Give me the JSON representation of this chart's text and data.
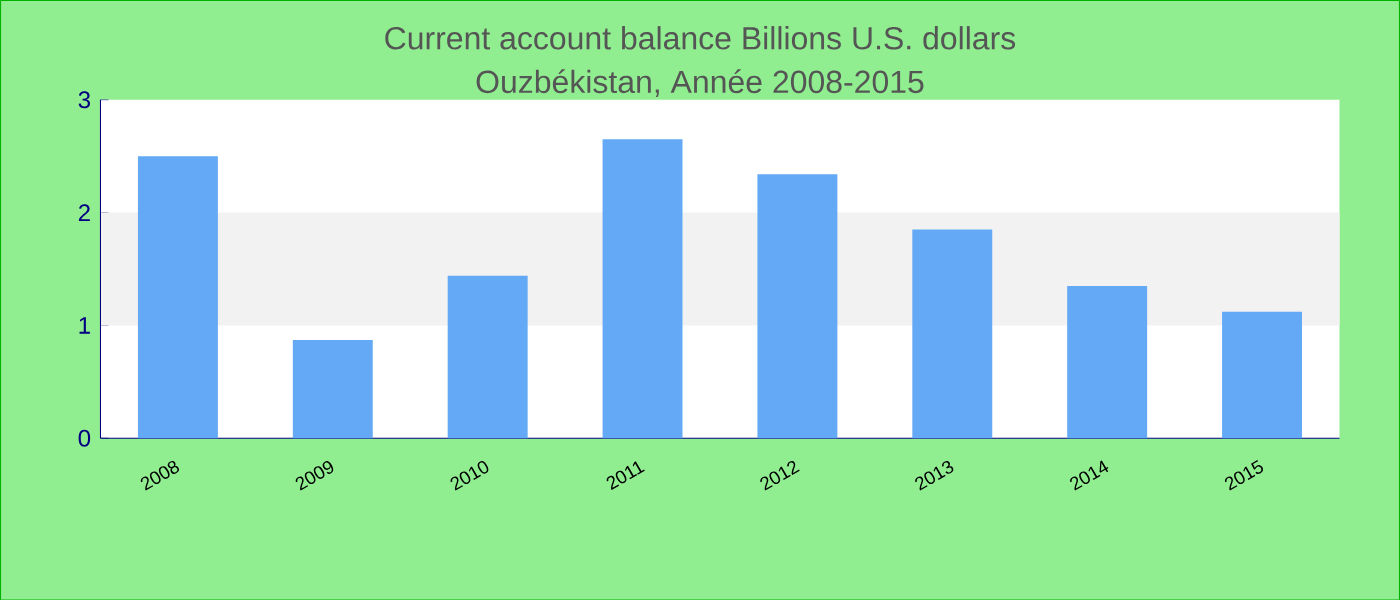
{
  "chart_data": {
    "type": "bar",
    "title": "Current account balance Billions U.S. dollars",
    "subtitle": "Ouzbékistan, Année 2008-2015",
    "categories": [
      "2008",
      "2009",
      "2010",
      "2011",
      "2012",
      "2013",
      "2014",
      "2015"
    ],
    "values": [
      2.5,
      0.87,
      1.44,
      2.65,
      2.34,
      1.85,
      1.35,
      1.12
    ],
    "color": "#63a9f5",
    "ylim": [
      0,
      3
    ],
    "yticks": [
      0,
      1,
      2,
      3
    ],
    "bands": [
      {
        "axis": "y",
        "from": 1,
        "to": 2,
        "color": "#f2f2f2"
      }
    ]
  }
}
